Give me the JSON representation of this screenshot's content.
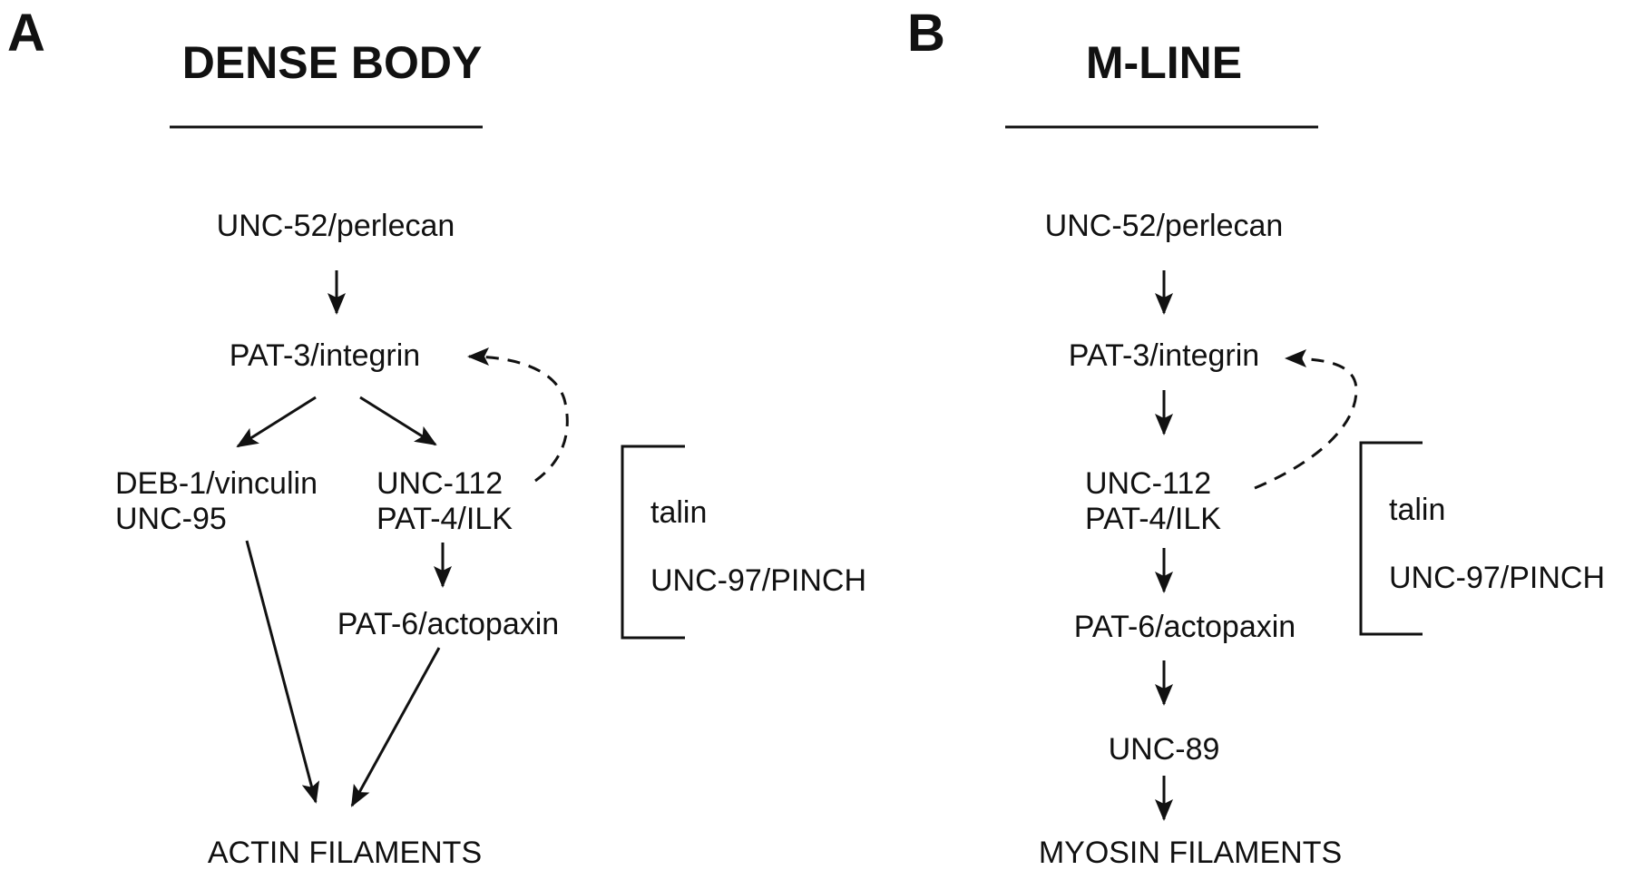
{
  "panel_a": {
    "letter": "A",
    "title": "DENSE BODY",
    "nodes": {
      "perlecan": "UNC-52/perlecan",
      "integrin": "PAT-3/integrin",
      "vinculin": "DEB-1/vinculin",
      "unc95": "UNC-95",
      "unc112": "UNC-112",
      "pat4": "PAT-4/ILK",
      "actopaxin": "PAT-6/actopaxin",
      "filaments": "ACTIN FILAMENTS"
    },
    "bracket": {
      "talin": "talin",
      "pinch": "UNC-97/PINCH"
    }
  },
  "panel_b": {
    "letter": "B",
    "title": "M-LINE",
    "nodes": {
      "perlecan": "UNC-52/perlecan",
      "integrin": "PAT-3/integrin",
      "unc112": "UNC-112",
      "pat4": "PAT-4/ILK",
      "actopaxin": "PAT-6/actopaxin",
      "unc89": "UNC-89",
      "filaments": "MYOSIN FILAMENTS"
    },
    "bracket": {
      "talin": "talin",
      "pinch": "UNC-97/PINCH"
    }
  }
}
